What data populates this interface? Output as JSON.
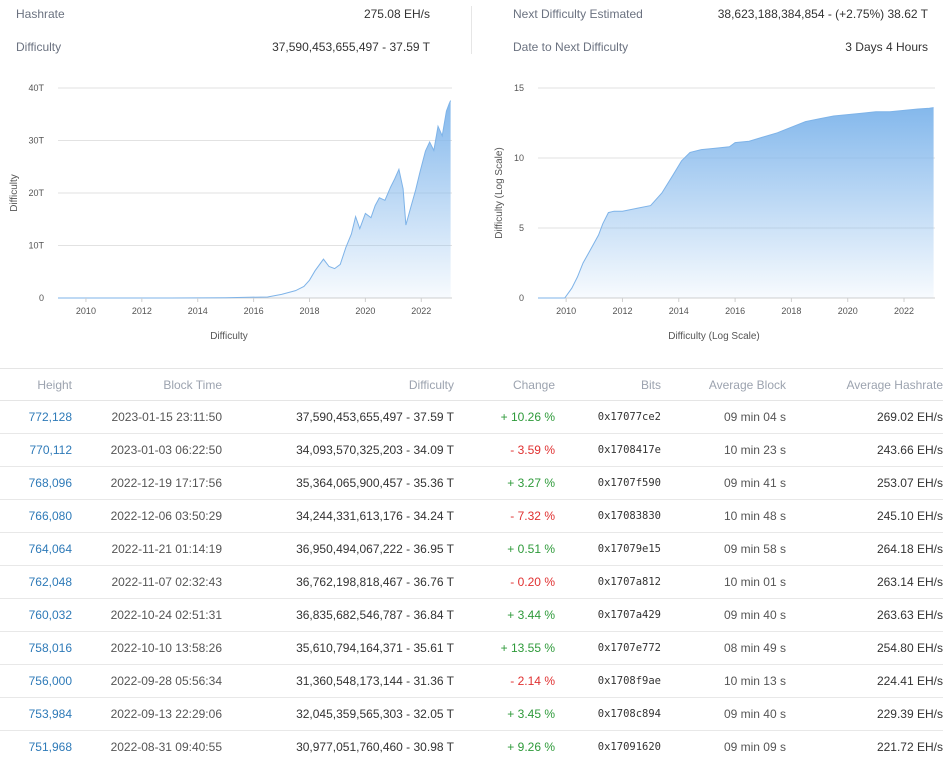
{
  "stats": {
    "hashrate_label": "Hashrate",
    "hashrate_value": "275.08 EH/s",
    "difficulty_label": "Difficulty",
    "difficulty_value": "37,590,453,655,497 - 37.59 T",
    "next_diff_label": "Next Difficulty Estimated",
    "next_diff_value": "38,623,188,384,854 - (+2.75%) 38.62 T",
    "date_next_label": "Date to Next Difficulty",
    "date_next_value": "3 Days 4 Hours"
  },
  "colors": {
    "accent": "#7eb3e8",
    "fill_top": "#84b8ec",
    "positive": "#2e9a3a",
    "negative": "#e03131",
    "link": "#2e7ab8"
  },
  "chart_data": [
    {
      "type": "area",
      "title": "",
      "xlabel": "Difficulty",
      "ylabel": "Difficulty",
      "x_ticks": [
        "2010",
        "2012",
        "2014",
        "2016",
        "2018",
        "2020",
        "2022"
      ],
      "y_ticks": [
        "0",
        "10T",
        "20T",
        "30T",
        "40T"
      ],
      "xlim": [
        2009.0,
        2023.1
      ],
      "ylim": [
        0,
        40
      ],
      "grid": true,
      "x": [
        2009.0,
        2013.0,
        2015.0,
        2016.5,
        2017.0,
        2017.5,
        2017.8,
        2018.0,
        2018.2,
        2018.5,
        2018.7,
        2018.9,
        2019.1,
        2019.3,
        2019.5,
        2019.65,
        2019.8,
        2020.0,
        2020.2,
        2020.35,
        2020.5,
        2020.7,
        2020.9,
        2021.05,
        2021.2,
        2021.35,
        2021.45,
        2021.6,
        2021.8,
        2021.95,
        2022.15,
        2022.3,
        2022.45,
        2022.6,
        2022.75,
        2022.9,
        2023.0,
        2023.05
      ],
      "y": [
        0,
        0.01,
        0.05,
        0.2,
        0.7,
        1.4,
        2.2,
        3.4,
        5.2,
        7.4,
        6.0,
        5.6,
        6.4,
        9.6,
        12.2,
        15.5,
        13.2,
        16.1,
        15.3,
        17.6,
        19.1,
        18.6,
        21.1,
        22.7,
        24.5,
        20.8,
        13.9,
        16.8,
        20.6,
        23.9,
        28.0,
        29.7,
        28.1,
        32.7,
        30.9,
        35.6,
        37.0,
        37.6
      ]
    },
    {
      "type": "area",
      "title": "",
      "xlabel": "Difficulty (Log Scale)",
      "ylabel": "Difficulty (Log Scale)",
      "x_ticks": [
        "2010",
        "2012",
        "2014",
        "2016",
        "2018",
        "2020",
        "2022"
      ],
      "y_ticks": [
        "0",
        "5",
        "10",
        "15"
      ],
      "xlim": [
        2009.0,
        2023.1
      ],
      "ylim": [
        0,
        15
      ],
      "grid": true,
      "x": [
        2009.0,
        2009.95,
        2010.2,
        2010.4,
        2010.6,
        2010.85,
        2011.15,
        2011.3,
        2011.5,
        2011.7,
        2012.0,
        2012.5,
        2013.0,
        2013.4,
        2013.8,
        2014.1,
        2014.4,
        2014.8,
        2015.3,
        2015.8,
        2016.0,
        2016.5,
        2017.0,
        2017.5,
        2018.0,
        2018.5,
        2019.0,
        2019.5,
        2020.0,
        2020.5,
        2021.0,
        2021.5,
        2022.0,
        2022.5,
        2022.9,
        2023.05
      ],
      "y": [
        0,
        0,
        0.7,
        1.5,
        2.5,
        3.4,
        4.5,
        5.3,
        6.1,
        6.2,
        6.2,
        6.4,
        6.6,
        7.5,
        8.8,
        9.8,
        10.4,
        10.6,
        10.7,
        10.8,
        11.1,
        11.2,
        11.5,
        11.8,
        12.2,
        12.6,
        12.8,
        13.0,
        13.1,
        13.2,
        13.3,
        13.3,
        13.4,
        13.5,
        13.55,
        13.6
      ]
    }
  ],
  "table": {
    "headers": {
      "height": "Height",
      "block_time": "Block Time",
      "difficulty": "Difficulty",
      "change": "Change",
      "bits": "Bits",
      "avg_block": "Average Block",
      "avg_hashrate": "Average Hashrate"
    },
    "rows": [
      {
        "height": "772,128",
        "time": "2023-01-15 23:11:50",
        "difficulty": "37,590,453,655,497 - 37.59 T",
        "change": "+ 10.26 %",
        "bits": "0x17077ce2",
        "avg_block": "09 min 04 s",
        "hashrate": "269.02 EH/s"
      },
      {
        "height": "770,112",
        "time": "2023-01-03 06:22:50",
        "difficulty": "34,093,570,325,203 - 34.09 T",
        "change": "- 3.59 %",
        "bits": "0x1708417e",
        "avg_block": "10 min 23 s",
        "hashrate": "243.66 EH/s"
      },
      {
        "height": "768,096",
        "time": "2022-12-19 17:17:56",
        "difficulty": "35,364,065,900,457 - 35.36 T",
        "change": "+ 3.27 %",
        "bits": "0x1707f590",
        "avg_block": "09 min 41 s",
        "hashrate": "253.07 EH/s"
      },
      {
        "height": "766,080",
        "time": "2022-12-06 03:50:29",
        "difficulty": "34,244,331,613,176 - 34.24 T",
        "change": "- 7.32 %",
        "bits": "0x17083830",
        "avg_block": "10 min 48 s",
        "hashrate": "245.10 EH/s"
      },
      {
        "height": "764,064",
        "time": "2022-11-21 01:14:19",
        "difficulty": "36,950,494,067,222 - 36.95 T",
        "change": "+ 0.51 %",
        "bits": "0x17079e15",
        "avg_block": "09 min 58 s",
        "hashrate": "264.18 EH/s"
      },
      {
        "height": "762,048",
        "time": "2022-11-07 02:32:43",
        "difficulty": "36,762,198,818,467 - 36.76 T",
        "change": "- 0.20 %",
        "bits": "0x1707a812",
        "avg_block": "10 min 01 s",
        "hashrate": "263.14 EH/s"
      },
      {
        "height": "760,032",
        "time": "2022-10-24 02:51:31",
        "difficulty": "36,835,682,546,787 - 36.84 T",
        "change": "+ 3.44 %",
        "bits": "0x1707a429",
        "avg_block": "09 min 40 s",
        "hashrate": "263.63 EH/s"
      },
      {
        "height": "758,016",
        "time": "2022-10-10 13:58:26",
        "difficulty": "35,610,794,164,371 - 35.61 T",
        "change": "+ 13.55 %",
        "bits": "0x1707e772",
        "avg_block": "08 min 49 s",
        "hashrate": "254.80 EH/s"
      },
      {
        "height": "756,000",
        "time": "2022-09-28 05:56:34",
        "difficulty": "31,360,548,173,144 - 31.36 T",
        "change": "- 2.14 %",
        "bits": "0x1708f9ae",
        "avg_block": "10 min 13 s",
        "hashrate": "224.41 EH/s"
      },
      {
        "height": "753,984",
        "time": "2022-09-13 22:29:06",
        "difficulty": "32,045,359,565,303 - 32.05 T",
        "change": "+ 3.45 %",
        "bits": "0x1708c894",
        "avg_block": "09 min 40 s",
        "hashrate": "229.39 EH/s"
      },
      {
        "height": "751,968",
        "time": "2022-08-31 09:40:55",
        "difficulty": "30,977,051,760,460 - 30.98 T",
        "change": "+ 9.26 %",
        "bits": "0x17091620",
        "avg_block": "09 min 09 s",
        "hashrate": "221.72 EH/s"
      }
    ]
  }
}
